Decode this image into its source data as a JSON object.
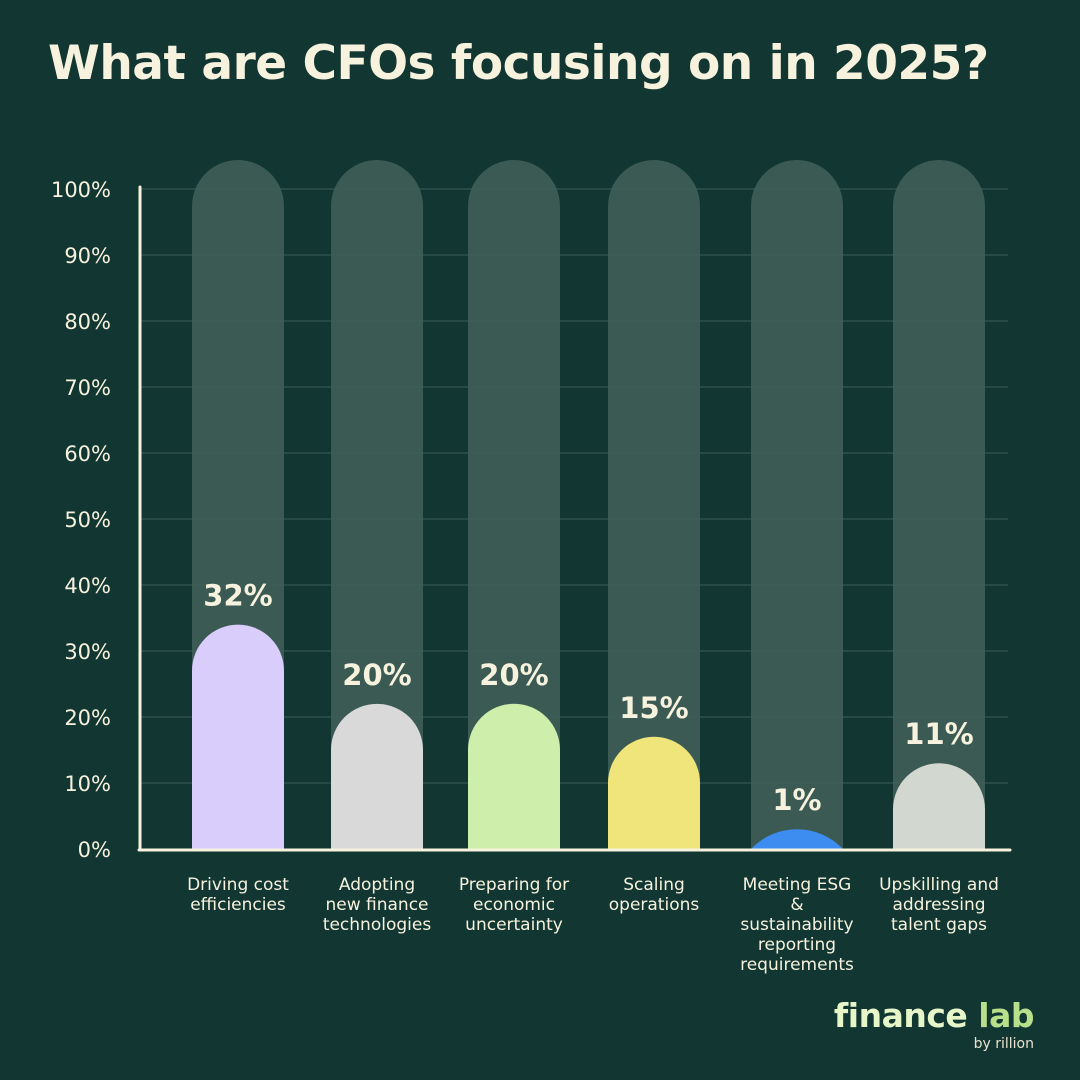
{
  "chart_data": {
    "type": "bar",
    "title": "What are CFOs focusing on in 2025?",
    "xlabel": "",
    "ylabel": "",
    "ylim": [
      0,
      100
    ],
    "yticks": [
      "0%",
      "10%",
      "20%",
      "30%",
      "40%",
      "50%",
      "60%",
      "70%",
      "80%",
      "90%",
      "100%"
    ],
    "grid": true,
    "categories": [
      [
        "Driving cost",
        "efficiencies"
      ],
      [
        "Adopting",
        "new finance",
        "technologies"
      ],
      [
        "Preparing for",
        "economic",
        "uncertainty"
      ],
      [
        "Scaling",
        "operations"
      ],
      [
        "Meeting ESG",
        "&",
        "sustainability",
        "reporting",
        "requirements"
      ],
      [
        "Upskilling and",
        "addressing",
        "talent gaps"
      ]
    ],
    "values": [
      32,
      20,
      20,
      15,
      1,
      11
    ],
    "data_labels": [
      "32%",
      "20%",
      "20%",
      "15%",
      "1%",
      "11%"
    ],
    "bar_colors": [
      "#d8cdfb",
      "#d9d9d9",
      "#cdefab",
      "#efe57a",
      "#3d8df0",
      "#d2d7d0"
    ]
  },
  "colors": {
    "background": "#123631",
    "track": "#3a5a53",
    "text": "#f7f2de",
    "axis": "#f7f2de",
    "gridline": "#3e5e57"
  },
  "brand": {
    "name_part1": "finance",
    "name_part2": "lab",
    "byline": "by rillion"
  }
}
